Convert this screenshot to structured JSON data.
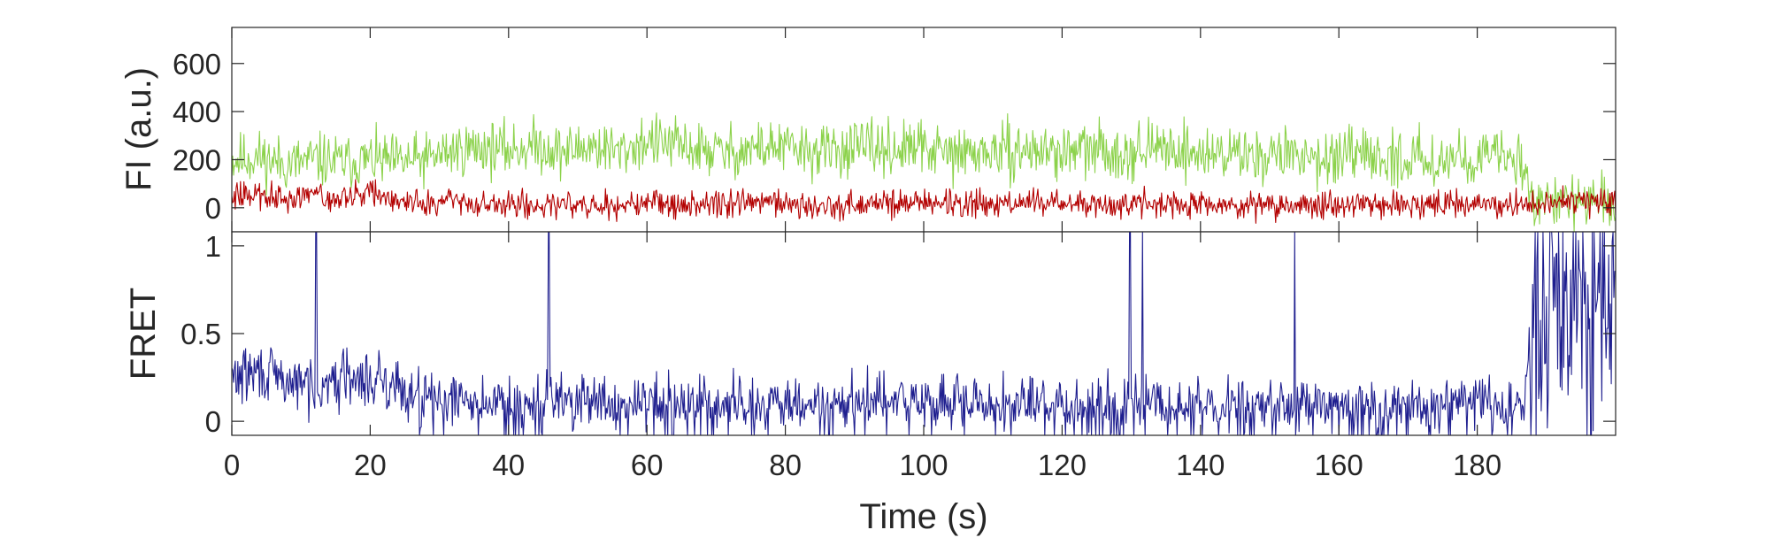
{
  "chart_data": [
    {
      "type": "line",
      "panel": "top",
      "ylabel": "FI (a.u.)",
      "xlim": [
        0,
        200
      ],
      "ylim": [
        -100,
        750
      ],
      "yticks": [
        0,
        200,
        400,
        600
      ],
      "series": [
        {
          "color": "#8cd24b",
          "x": [
            0,
            4,
            8,
            12,
            16,
            20,
            24,
            28,
            32,
            36,
            40,
            44,
            48,
            52,
            56,
            60,
            64,
            68,
            72,
            76,
            80,
            84,
            88,
            92,
            96,
            100,
            104,
            108,
            112,
            116,
            120,
            124,
            128,
            132,
            136,
            140,
            144,
            148,
            152,
            156,
            160,
            164,
            168,
            172,
            176,
            180,
            184,
            186.5,
            188,
            192,
            196,
            200
          ],
          "y": [
            200,
            210,
            180,
            200,
            190,
            200,
            190,
            200,
            240,
            250,
            240,
            260,
            230,
            260,
            230,
            280,
            260,
            240,
            230,
            250,
            250,
            230,
            240,
            250,
            240,
            250,
            220,
            230,
            230,
            240,
            230,
            240,
            230,
            240,
            250,
            220,
            230,
            220,
            220,
            220,
            200,
            210,
            200,
            210,
            200,
            210,
            210,
            200,
            40,
            30,
            20,
            20
          ]
        },
        {
          "color": "#b30000",
          "x": [
            0,
            4,
            8,
            12,
            16,
            20,
            24,
            28,
            32,
            36,
            40,
            44,
            48,
            52,
            56,
            60,
            64,
            68,
            72,
            76,
            80,
            84,
            88,
            92,
            96,
            100,
            104,
            108,
            112,
            116,
            120,
            124,
            128,
            132,
            136,
            140,
            144,
            148,
            152,
            156,
            160,
            164,
            168,
            172,
            176,
            180,
            184,
            188,
            192,
            196,
            200
          ],
          "y": [
            60,
            50,
            40,
            50,
            40,
            60,
            30,
            20,
            20,
            10,
            10,
            10,
            20,
            20,
            10,
            20,
            10,
            10,
            20,
            20,
            20,
            10,
            10,
            20,
            20,
            30,
            20,
            10,
            20,
            20,
            20,
            10,
            10,
            20,
            10,
            10,
            10,
            10,
            10,
            10,
            10,
            10,
            10,
            10,
            10,
            20,
            10,
            10,
            20,
            20,
            20
          ]
        }
      ]
    },
    {
      "type": "line",
      "panel": "bottom",
      "ylabel": "FRET",
      "xlabel": "Time (s)",
      "xlim": [
        0,
        200
      ],
      "ylim": [
        -0.08,
        1.08
      ],
      "yticks": [
        0,
        0.5,
        1
      ],
      "xticks": [
        0,
        20,
        40,
        60,
        80,
        100,
        120,
        140,
        160,
        180
      ],
      "series": [
        {
          "color": "#1f1f8f",
          "spikes_to_one_at": [
            12.2,
            45.8,
            129.8,
            131.6,
            153.6
          ],
          "x": [
            0,
            4,
            8,
            12,
            16,
            20,
            24,
            28,
            32,
            36,
            40,
            44,
            48,
            52,
            56,
            60,
            64,
            68,
            72,
            76,
            80,
            84,
            88,
            92,
            96,
            100,
            104,
            108,
            112,
            116,
            120,
            124,
            128,
            132,
            136,
            140,
            144,
            148,
            152,
            156,
            160,
            164,
            168,
            172,
            176,
            180,
            184,
            186.5,
            188,
            192,
            196,
            200
          ],
          "y": [
            0.25,
            0.28,
            0.22,
            0.2,
            0.25,
            0.22,
            0.2,
            0.15,
            0.12,
            0.1,
            0.1,
            0.1,
            0.12,
            0.1,
            0.08,
            0.1,
            0.08,
            0.08,
            0.1,
            0.1,
            0.08,
            0.08,
            0.08,
            0.1,
            0.1,
            0.12,
            0.1,
            0.08,
            0.1,
            0.1,
            0.1,
            0.08,
            0.08,
            0.1,
            0.08,
            0.08,
            0.08,
            0.08,
            0.08,
            0.08,
            0.08,
            0.08,
            0.08,
            0.08,
            0.08,
            0.1,
            0.08,
            0.08,
            0.55,
            0.6,
            0.6,
            0.6
          ]
        }
      ]
    }
  ]
}
